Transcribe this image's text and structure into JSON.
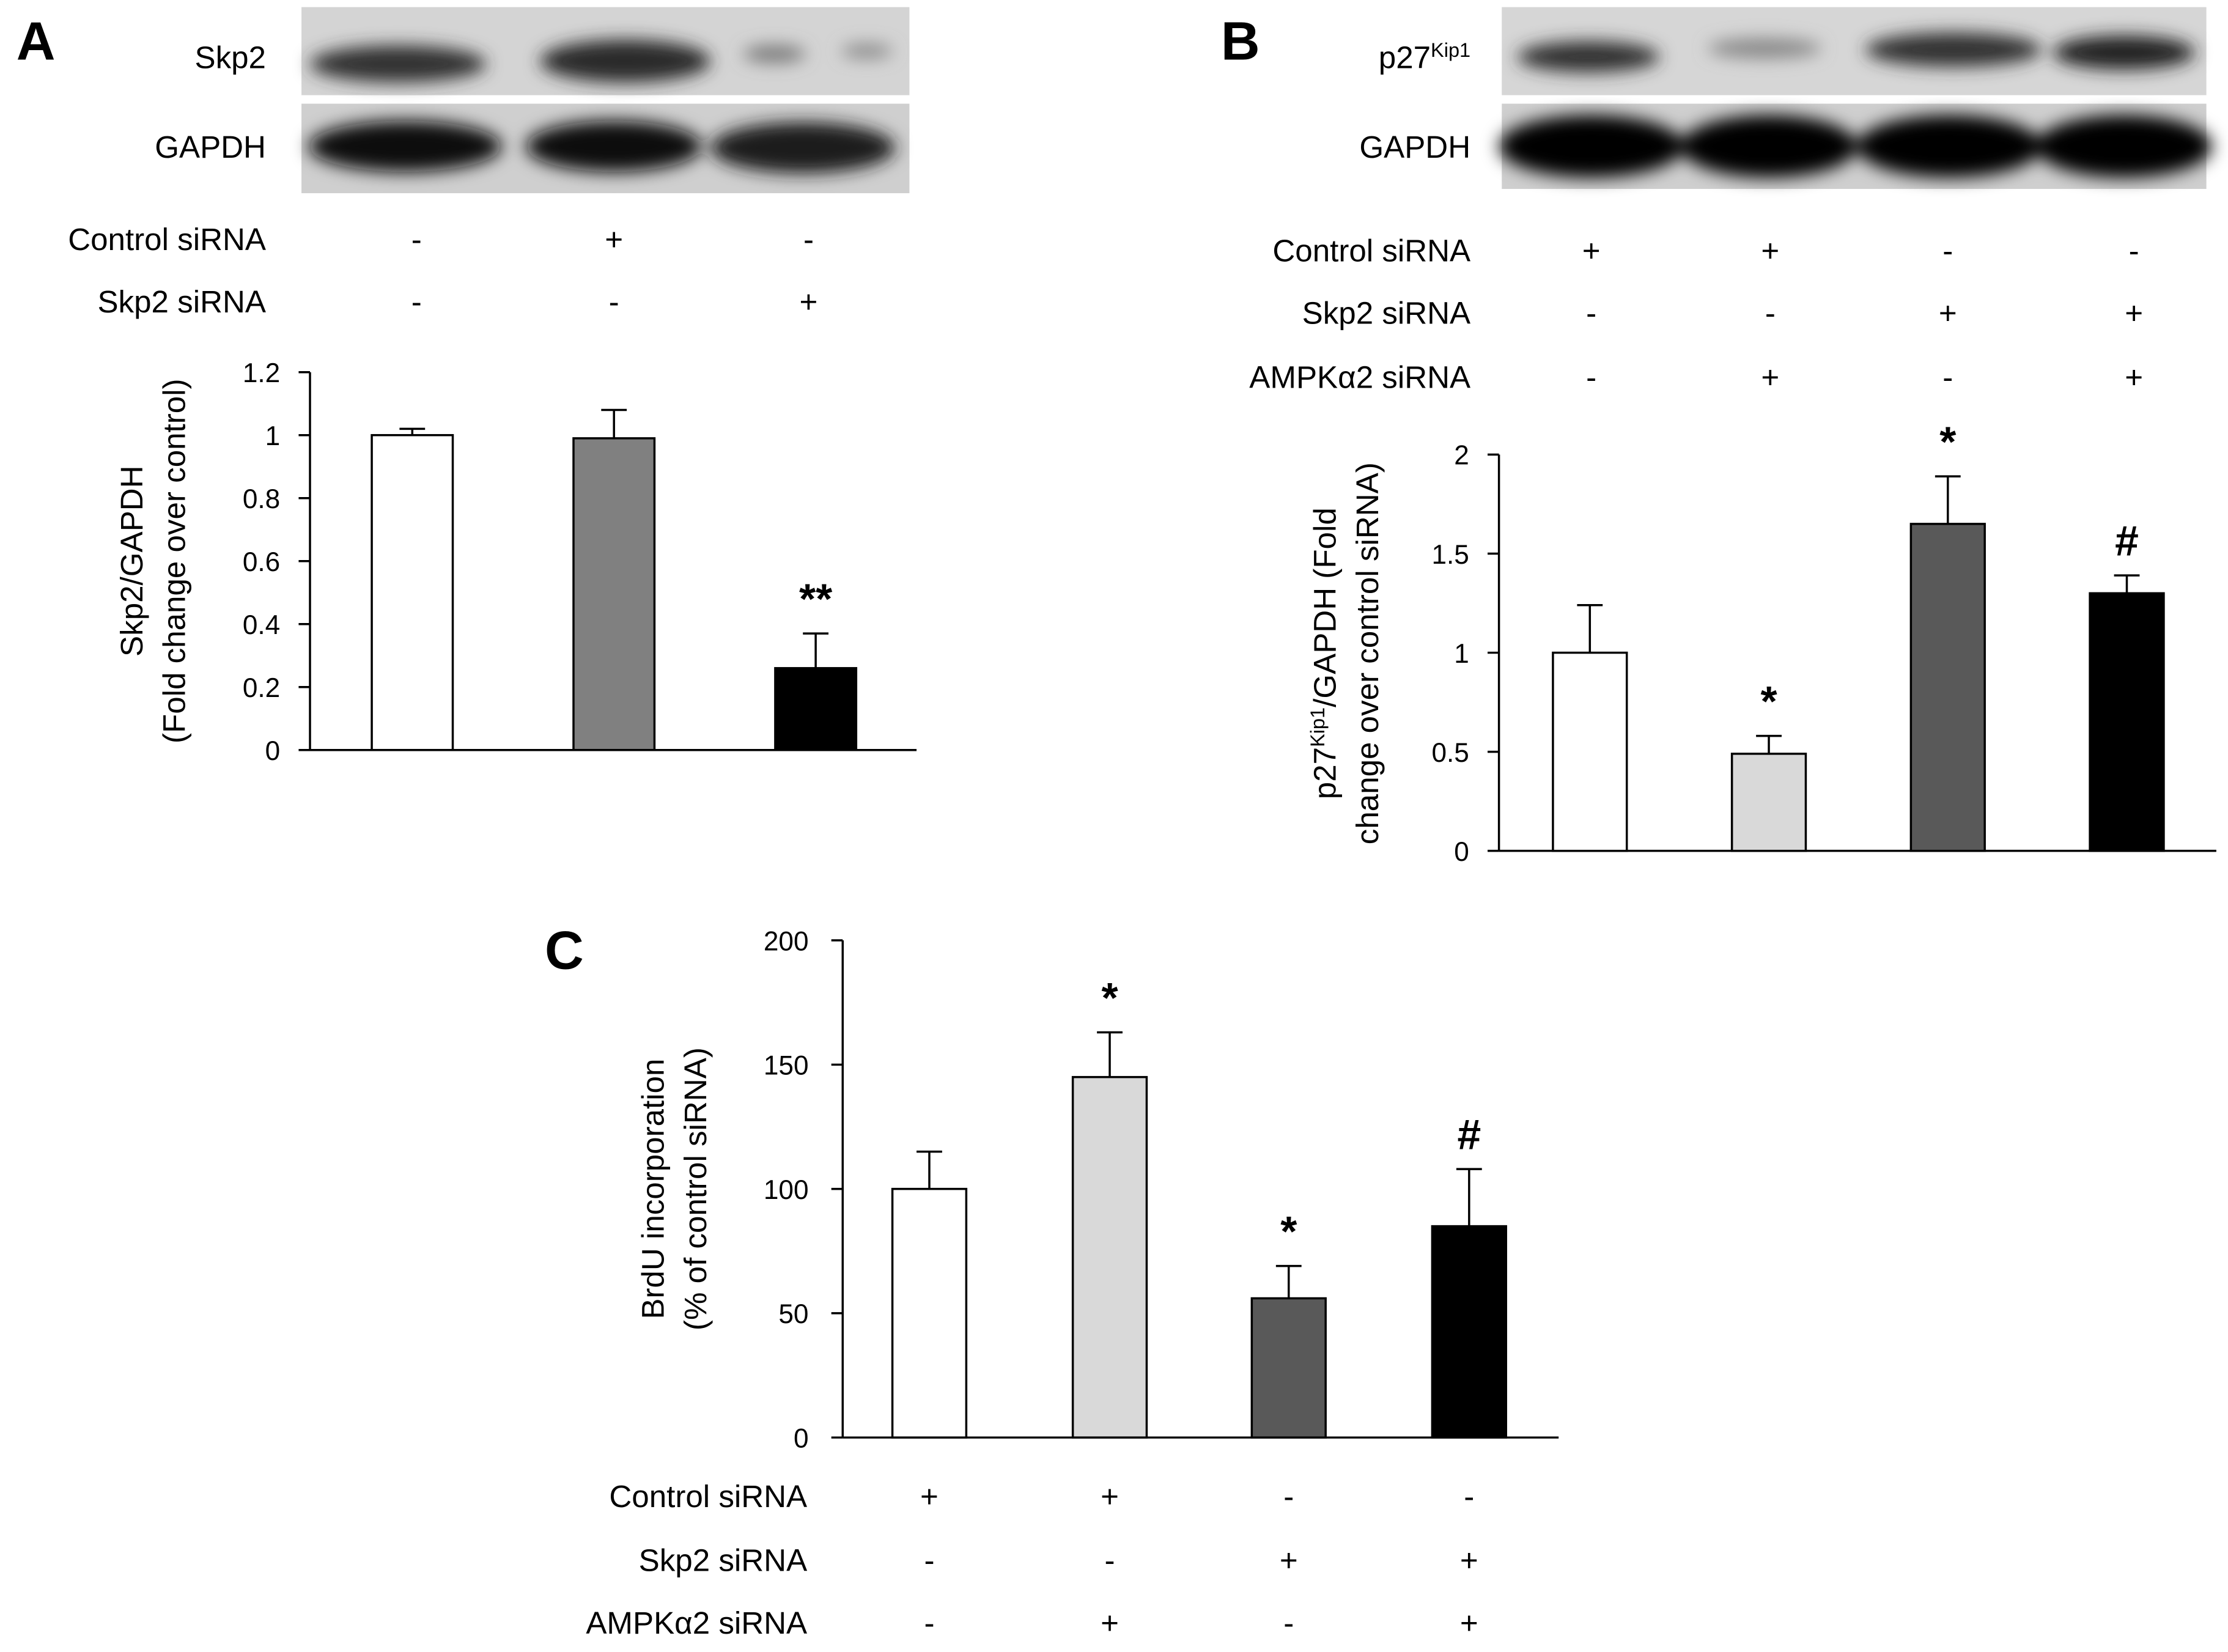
{
  "chart_data": [
    {
      "type": "bar",
      "panel": "A",
      "blot_labels": [
        "Skp2",
        "GAPDH"
      ],
      "conditions": [
        {
          "label": "Control siRNA",
          "signs": [
            "-",
            "+",
            "-"
          ]
        },
        {
          "label": "Skp2 siRNA",
          "signs": [
            "-",
            "-",
            "+"
          ]
        }
      ],
      "y_label": [
        "Skp2/GAPDH",
        "(Fold change over control)"
      ],
      "values": [
        1,
        0.99,
        0.26
      ],
      "errors": [
        0.02,
        0.09,
        0.11
      ],
      "annotations": [
        null,
        null,
        "**"
      ],
      "colors": [
        "#ffffff",
        "#808080",
        "#000000"
      ],
      "ylim": [
        0,
        1.2
      ],
      "yticks": [
        0,
        0.2,
        0.4,
        0.6,
        0.8,
        1,
        1.2
      ]
    },
    {
      "type": "bar",
      "panel": "B",
      "blot_labels": [
        {
          "base": "p27",
          "sup": "Kip1"
        },
        "GAPDH"
      ],
      "conditions": [
        {
          "label": "Control siRNA",
          "signs": [
            "+",
            "+",
            "-",
            "-"
          ]
        },
        {
          "label": "Skp2 siRNA",
          "signs": [
            "-",
            "-",
            "+",
            "+"
          ]
        },
        {
          "label": "AMPKα2 siRNA",
          "signs": [
            "-",
            "+",
            "-",
            "+"
          ]
        }
      ],
      "y_label": [
        {
          "base": "p27",
          "sup": "Kip1",
          "rest": "/GAPDH (Fold"
        },
        "change over control siRNA)"
      ],
      "values": [
        1,
        0.49,
        1.65,
        1.3
      ],
      "errors": [
        0.24,
        0.09,
        0.24,
        0.09
      ],
      "annotations": [
        null,
        "*",
        "*",
        "#"
      ],
      "colors": [
        "#ffffff",
        "#d9d9d9",
        "#595959",
        "#000000"
      ],
      "ylim": [
        0,
        2
      ],
      "yticks": [
        0,
        0.5,
        1,
        1.5,
        2
      ]
    },
    {
      "type": "bar",
      "panel": "C",
      "conditions": [
        {
          "label": "Control siRNA",
          "signs": [
            "+",
            "+",
            "-",
            "-"
          ]
        },
        {
          "label": "Skp2 siRNA",
          "signs": [
            "-",
            "-",
            "+",
            "+"
          ]
        },
        {
          "label": "AMPKα2 siRNA",
          "signs": [
            "-",
            "+",
            "-",
            "+"
          ]
        }
      ],
      "y_label": [
        "BrdU incorporation",
        "(% of control siRNA)"
      ],
      "values": [
        100,
        145,
        56,
        85
      ],
      "errors": [
        15,
        18,
        13,
        23
      ],
      "annotations": [
        null,
        "*",
        "*",
        "#"
      ],
      "colors": [
        "#ffffff",
        "#d9d9d9",
        "#595959",
        "#000000"
      ],
      "ylim": [
        0,
        200
      ],
      "yticks": [
        0,
        50,
        100,
        150,
        200
      ]
    }
  ]
}
